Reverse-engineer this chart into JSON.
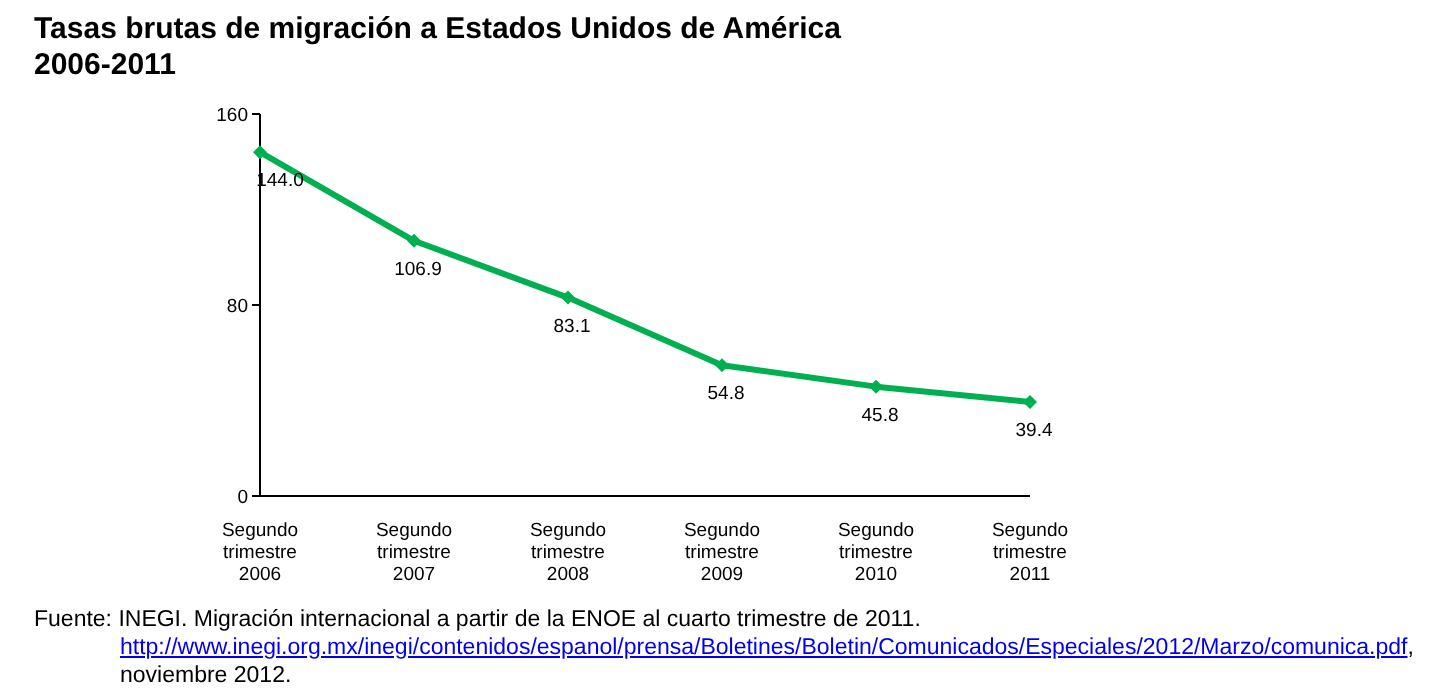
{
  "chart_data": {
    "type": "line",
    "title": "Tasas brutas de migración a Estados Unidos de América\n2006-2011",
    "categories": [
      "Segundo trimestre 2006",
      "Segundo trimestre 2007",
      "Segundo trimestre 2008",
      "Segundo trimestre 2009",
      "Segundo trimestre 2010",
      "Segundo trimestre 2011"
    ],
    "series": [
      {
        "color": "#00b050",
        "values": [
          144.0,
          106.9,
          83.1,
          54.8,
          45.8,
          39.4
        ]
      }
    ],
    "value_labels": [
      "144.0",
      "106.9",
      "83.1",
      "54.8",
      "45.8",
      "39.4"
    ],
    "ylim": [
      0,
      160
    ],
    "yticks": [
      0,
      80,
      160
    ],
    "grid": false,
    "legend": false,
    "marker": "diamond",
    "line_style": "solid",
    "annotations": [
      "Fuente: INEGI. Migración internacional a partir de la ENOE al cuarto trimestre de 2011.",
      "http://www.inegi.org.mx/inegi/contenidos/espanol/prensa/Boletines/Boletin/Comunicados/Especiales/2012/Marzo/comunica.pdf",
      ", noviembre 2012."
    ]
  }
}
